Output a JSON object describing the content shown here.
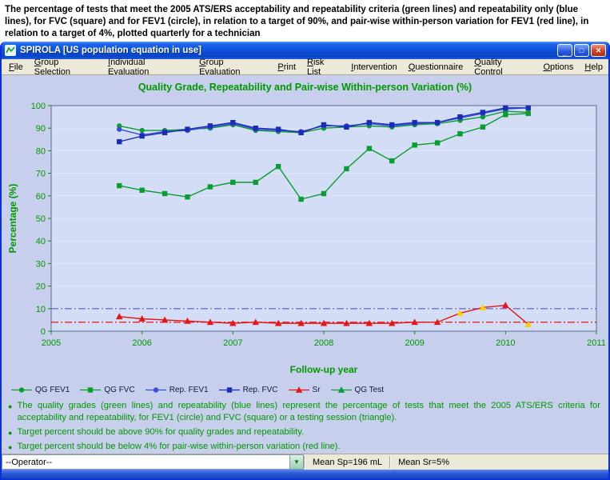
{
  "caption": "The percentage of tests that meet the 2005 ATS/ERS acceptability and repeatability criteria (green lines) and repeatability only (blue lines), for FVC (square) and for FEV1 (circle), in relation to a target of 90%, and pair-wise within-person variation for FEV1 (red line), in relation to a target of 4%, plotted quarterly for a technician",
  "window": {
    "title": "SPIROLA  [US population equation in use]",
    "minimize_label": "_",
    "maximize_label": "□",
    "close_label": "✕"
  },
  "menu": {
    "items": [
      "File",
      "Group Selection",
      "Individual Evaluation",
      "Group Evaluation",
      "Print",
      "Risk List",
      "Intervention",
      "Questionnaire",
      "Quality Control",
      "Options",
      "Help"
    ]
  },
  "theme": {
    "accent_green": "#009900",
    "series_green": "#0a9d2f",
    "series_blue": "#3a4fd8",
    "series_navy": "#1b2cb8",
    "series_red": "#e81515",
    "highlight_yellow": "#ffd000",
    "client_bg": "#c7cfec",
    "plot_bg": "#d3ddf6",
    "plot_border": "#5a6a9a",
    "titlebar_blue": "#0d4fd8"
  },
  "chart_data": {
    "type": "line",
    "title": "Quality Grade, Repeatability and Pair-wise Within-person Variation (%)",
    "xlabel": "Follow-up year",
    "ylabel": "Percentage (%)",
    "xlim": [
      2005,
      2011
    ],
    "ylim": [
      0,
      100
    ],
    "xticks": [
      2005,
      2006,
      2007,
      2008,
      2009,
      2010,
      2011
    ],
    "yticks": [
      0,
      10,
      20,
      30,
      40,
      50,
      60,
      70,
      80,
      90,
      100
    ],
    "grid": "faint-horizontal",
    "legend_position": "bottom-left",
    "x": [
      2005.75,
      2006.0,
      2006.25,
      2006.5,
      2006.75,
      2007.0,
      2007.25,
      2007.5,
      2007.75,
      2008.0,
      2008.25,
      2008.5,
      2008.75,
      2009.0,
      2009.25,
      2009.5,
      2009.75,
      2010.0,
      2010.25
    ],
    "series": [
      {
        "name": "QG FEV1",
        "marker": "circle",
        "color": "#0a9d2f",
        "values": [
          91,
          89,
          89,
          89.5,
          90,
          91.5,
          89,
          88.5,
          88,
          90,
          90.5,
          91,
          90.5,
          91.5,
          92,
          93.5,
          95,
          97.5,
          97
        ]
      },
      {
        "name": "QG FVC",
        "marker": "square",
        "color": "#0a9d2f",
        "values": [
          64.5,
          62.5,
          61,
          59.5,
          64,
          66,
          66,
          73,
          58.5,
          61,
          72,
          81,
          75.5,
          82.5,
          83.5,
          87.5,
          90.5,
          96,
          96.5
        ]
      },
      {
        "name": "Rep. FEV1",
        "marker": "circle",
        "color": "#3a4fd8",
        "values": [
          89.5,
          87,
          88.5,
          89,
          90.5,
          92,
          89.5,
          89,
          88.5,
          91,
          91,
          92,
          91,
          92,
          92.5,
          94.5,
          96.5,
          98.5,
          99
        ]
      },
      {
        "name": "Rep. FVC",
        "marker": "square",
        "color": "#1b2cb8",
        "values": [
          84,
          86.5,
          88,
          89.5,
          91,
          92.5,
          90,
          89.5,
          88,
          91.5,
          90.5,
          92.5,
          91.5,
          92.5,
          92.5,
          95,
          97,
          99,
          99
        ]
      },
      {
        "name": "Sr",
        "marker": "triangle",
        "color": "#e81515",
        "values": [
          6.5,
          5.5,
          5,
          4.5,
          4,
          3.5,
          4,
          3.5,
          3.5,
          3.5,
          3.5,
          3.5,
          3.5,
          4,
          4,
          8,
          10.5,
          11.5,
          3
        ],
        "point_colors": {
          "15": "#ffd000",
          "16": "#ffd000",
          "18": "#ffd000"
        }
      },
      {
        "name": "QG Test",
        "marker": "triangle",
        "color": "#0a9d2f",
        "values": []
      }
    ],
    "reference_lines": [
      {
        "y": 10,
        "color": "#5555e0",
        "style": "dashdot"
      },
      {
        "y": 4,
        "color": "#e81515",
        "style": "dashdot"
      }
    ]
  },
  "notes": [
    "The quality grades (green lines) and repeatability (blue lines) represent the percentage of tests that meet the 2005 ATS/ERS criteria for acceptability and repeatability, for FEV1 (circle) and FVC (square) or a testing session (triangle).",
    "Target percent should be above 90% for quality grades and repeatability.",
    "Target percent should be below  4% for pair-wise within-person variation (red line)."
  ],
  "footer": {
    "operator": "--Operator--",
    "mean_sp": "Mean Sp=196 mL",
    "mean_sr": "Mean Sr=5%"
  }
}
